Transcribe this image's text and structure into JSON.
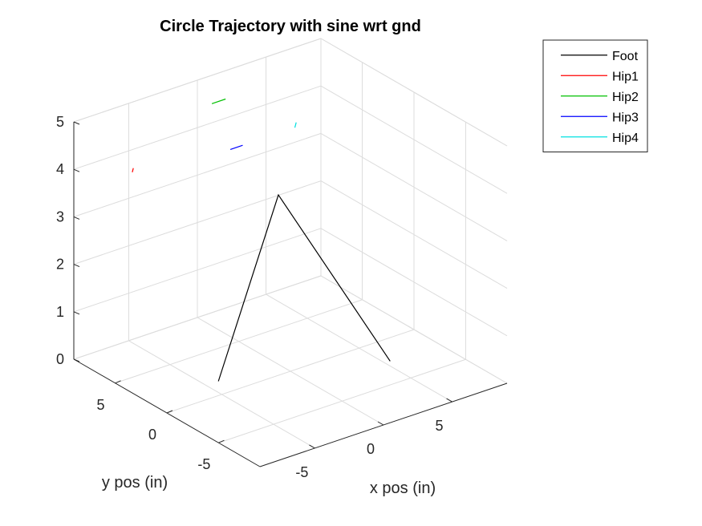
{
  "chart_data": {
    "type": "line",
    "projection": "3d",
    "title": "Circle Trajectory with sine wrt gnd",
    "xlabel": "x pos (in)",
    "ylabel": "y pos (in)",
    "zlabel": "",
    "xlim": [
      -9,
      9
    ],
    "ylim": [
      -9,
      9
    ],
    "zlim": [
      0,
      5
    ],
    "xticks": [
      -5,
      0,
      5
    ],
    "yticks": [
      -5,
      0,
      5
    ],
    "zticks": [
      0,
      1,
      2,
      3,
      4,
      5
    ],
    "grid": true,
    "legend_position": "top-right, outside",
    "series": [
      {
        "name": "Foot",
        "color": "#000000",
        "points": [
          [
            -6,
            -1,
            0.5
          ],
          [
            -0.5,
            0.5,
            3.7
          ],
          [
            3.5,
            -5,
            0.5
          ]
        ]
      },
      {
        "name": "Hip1",
        "color": "#ff0000",
        "points": [
          [
            -7.3,
            5.6,
            4.2
          ],
          [
            -7.3,
            5.5,
            4.3
          ]
        ]
      },
      {
        "name": "Hip2",
        "color": "#00c000",
        "points": [
          [
            -1.2,
            6.0,
            5.0
          ],
          [
            -0.2,
            6.0,
            5.0
          ]
        ]
      },
      {
        "name": "Hip3",
        "color": "#0000ff",
        "points": [
          [
            -4.0,
            0.5,
            5.0
          ],
          [
            -3.1,
            0.5,
            5.0
          ]
        ]
      },
      {
        "name": "Hip4",
        "color": "#00e0e0",
        "points": [
          [
            0.7,
            0.5,
            5.0
          ],
          [
            0.8,
            0.5,
            5.1
          ]
        ]
      }
    ]
  }
}
